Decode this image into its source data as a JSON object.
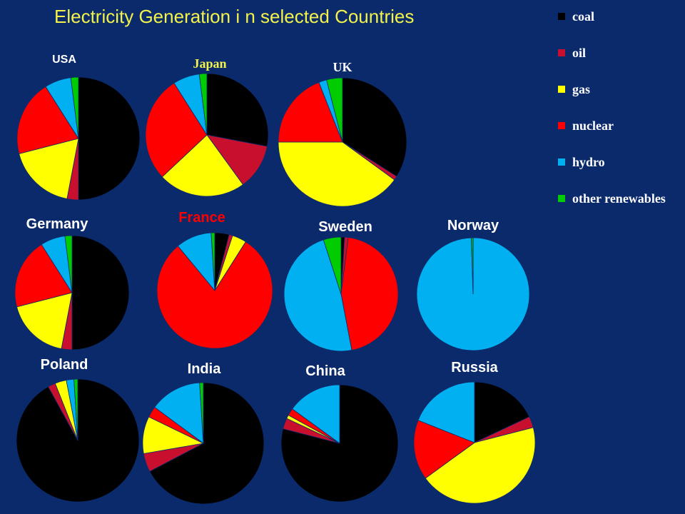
{
  "chart_data": {
    "type": "pie",
    "title": "Electricity Generation i n selected Countries",
    "legend": [
      "coal",
      "oil",
      "gas",
      "nuclear",
      "hydro",
      "other renewables"
    ],
    "legend_position": "right",
    "colors": {
      "coal": "#000000",
      "oil": "#c8102e",
      "gas": "#ffff00",
      "nuclear": "#ff0000",
      "hydro": "#00b0f0",
      "other renewables": "#00cc00"
    },
    "title_color": "#f2f24a",
    "background": "#0b2a6b",
    "countries": [
      {
        "name": "USA",
        "label_color": "#ffffff",
        "values": {
          "coal": 50,
          "oil": 3,
          "gas": 18,
          "nuclear": 20,
          "hydro": 7,
          "other renewables": 2
        }
      },
      {
        "name": "Japan",
        "label_color": "#f2f24a",
        "values": {
          "coal": 28,
          "oil": 12,
          "gas": 23,
          "nuclear": 28,
          "hydro": 7,
          "other renewables": 2
        }
      },
      {
        "name": "UK",
        "label_color": "#ffffff",
        "values": {
          "coal": 34,
          "oil": 1,
          "gas": 40,
          "nuclear": 19,
          "hydro": 2,
          "other renewables": 4
        }
      },
      {
        "name": "Germany",
        "label_color": "#ffffff",
        "values": {
          "coal": 50,
          "oil": 3,
          "gas": 18,
          "nuclear": 20,
          "hydro": 7,
          "other renewables": 2
        }
      },
      {
        "name": "France",
        "label_color": "#ff0000",
        "values": {
          "coal": 4,
          "oil": 1,
          "gas": 4,
          "nuclear": 80,
          "hydro": 10,
          "other renewables": 1
        }
      },
      {
        "name": "Sweden",
        "label_color": "#ffffff",
        "values": {
          "coal": 1,
          "oil": 1,
          "gas": 0,
          "nuclear": 45,
          "hydro": 48,
          "other renewables": 5
        }
      },
      {
        "name": "Norway",
        "label_color": "#ffffff",
        "values": {
          "coal": 0,
          "oil": 0,
          "gas": 0,
          "nuclear": 0,
          "hydro": 99.5,
          "other renewables": 0.5
        }
      },
      {
        "name": "Poland",
        "label_color": "#ffffff",
        "values": {
          "coal": 92,
          "oil": 2,
          "gas": 3,
          "nuclear": 0,
          "hydro": 2,
          "other renewables": 1
        }
      },
      {
        "name": "India",
        "label_color": "#ffffff",
        "values": {
          "coal": 68,
          "oil": 5,
          "gas": 10,
          "nuclear": 3,
          "hydro": 14,
          "other renewables": 1
        }
      },
      {
        "name": "China",
        "label_color": "#ffffff",
        "values": {
          "coal": 79,
          "oil": 3,
          "gas": 1,
          "nuclear": 2,
          "hydro": 15,
          "other renewables": 0
        }
      },
      {
        "name": "Russia",
        "label_color": "#ffffff",
        "values": {
          "coal": 18,
          "oil": 3,
          "gas": 44,
          "nuclear": 16,
          "hydro": 19,
          "other renewables": 0
        }
      }
    ]
  }
}
